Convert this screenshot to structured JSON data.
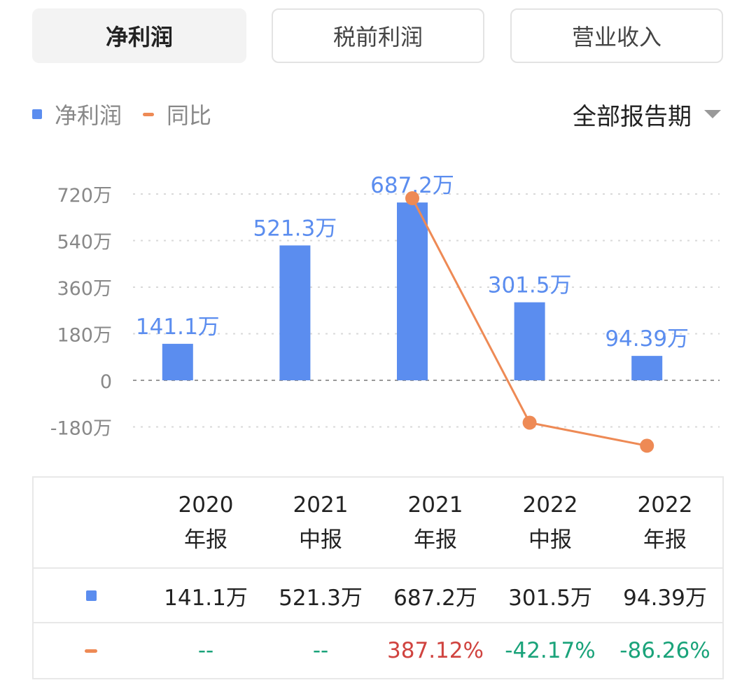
{
  "tabs": [
    {
      "label": "净利润",
      "active": true
    },
    {
      "label": "税前利润",
      "active": false
    },
    {
      "label": "营业收入",
      "active": false
    }
  ],
  "legend": {
    "bars": "净利润",
    "line": "同比"
  },
  "period_selector": {
    "label": "全部报告期",
    "icon": "caret-down-icon"
  },
  "colors": {
    "bar": "#5b8def",
    "line": "#ee8a55",
    "positive": "#d0433f",
    "negative": "#1aa37a",
    "grid": "#d9d9d9"
  },
  "chart_data": {
    "type": "bar",
    "categories": [
      "2020年报",
      "2021中报",
      "2021年报",
      "2022中报",
      "2022年报"
    ],
    "series": [
      {
        "name": "净利润",
        "type": "bar",
        "values": [
          141.1,
          521.3,
          687.2,
          301.5,
          94.39
        ],
        "unit": "万",
        "labels": [
          "141.1万",
          "521.3万",
          "687.2万",
          "301.5万",
          "94.39万"
        ]
      },
      {
        "name": "同比",
        "type": "line",
        "values": [
          null,
          null,
          387.12,
          -42.17,
          -86.26
        ],
        "unit": "%"
      }
    ],
    "y_ticks": [
      "720万",
      "540万",
      "360万",
      "180万",
      "0",
      "-180万"
    ],
    "ylim": [
      -180,
      720
    ],
    "grid": true
  },
  "table": {
    "columns": [
      {
        "year": "2020",
        "type": "年报"
      },
      {
        "year": "2021",
        "type": "中报"
      },
      {
        "year": "2021",
        "type": "年报"
      },
      {
        "year": "2022",
        "type": "中报"
      },
      {
        "year": "2022",
        "type": "年报"
      }
    ],
    "net_profit": [
      "141.1万",
      "521.3万",
      "687.2万",
      "301.5万",
      "94.39万"
    ],
    "yoy": [
      "--",
      "--",
      "387.12%",
      "-42.17%",
      "-86.26%"
    ]
  }
}
